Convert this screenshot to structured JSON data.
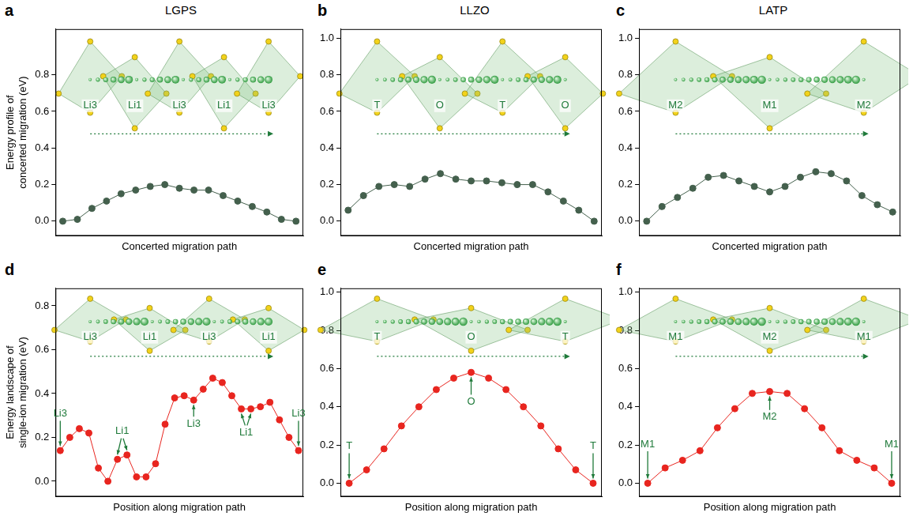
{
  "chart_data": [
    {
      "panel": "a",
      "type": "line",
      "title": "LGPS",
      "y_label": "Energy profile of concerted migration (eV)",
      "x_label": "Concerted migration path",
      "categories": [
        null,
        null,
        null,
        null,
        null,
        null,
        null,
        null,
        null,
        null,
        null,
        null,
        null,
        null,
        null,
        null,
        null
      ],
      "values": [
        0.0,
        0.01,
        0.07,
        0.11,
        0.15,
        0.17,
        0.19,
        0.2,
        0.18,
        0.17,
        0.17,
        0.14,
        0.11,
        0.08,
        0.05,
        0.01,
        0.0
      ],
      "color": "#44604d",
      "marker": "circle",
      "line_style": "solid",
      "ylim": [
        -0.08,
        1.05
      ],
      "yticks": [
        {
          "value": 0,
          "label": "0.0"
        },
        {
          "value": 0.2,
          "label": "0.2"
        },
        {
          "value": 0.4,
          "label": "0.4"
        },
        {
          "value": 0.6,
          "label": "0.6"
        },
        {
          "value": 0.8,
          "label": "0.8"
        }
      ],
      "grid": false,
      "tick_labels": "y",
      "inset_labels": [
        "Li3",
        "Li1",
        "Li3",
        "Li1",
        "Li3"
      ],
      "annotations": []
    },
    {
      "panel": "b",
      "type": "line",
      "title": "LLZO",
      "x_label": "Concerted migration path",
      "categories": [
        null,
        null,
        null,
        null,
        null,
        null,
        null,
        null,
        null,
        null,
        null,
        null,
        null,
        null,
        null,
        null,
        null
      ],
      "values": [
        0.06,
        0.14,
        0.19,
        0.2,
        0.19,
        0.23,
        0.26,
        0.23,
        0.22,
        0.22,
        0.21,
        0.2,
        0.2,
        0.16,
        0.11,
        0.06,
        0.0
      ],
      "color": "#44604d",
      "marker": "circle",
      "line_style": "solid",
      "ylim": [
        -0.08,
        1.05
      ],
      "yticks": [
        {
          "value": 0,
          "label": "0.0"
        },
        {
          "value": 0.2,
          "label": "0.2"
        },
        {
          "value": 0.4,
          "label": "0.4"
        },
        {
          "value": 0.6,
          "label": "0.6"
        },
        {
          "value": 0.8,
          "label": "0.8"
        },
        {
          "value": 1,
          "label": "1.0"
        }
      ],
      "grid": false,
      "tick_labels": "y",
      "inset_labels": [
        "T",
        "O",
        "T",
        "O"
      ],
      "annotations": []
    },
    {
      "panel": "c",
      "type": "line",
      "title": "LATP",
      "x_label": "Concerted migration path",
      "categories": [
        null,
        null,
        null,
        null,
        null,
        null,
        null,
        null,
        null,
        null,
        null,
        null,
        null,
        null,
        null,
        null,
        null
      ],
      "values": [
        0.0,
        0.08,
        0.13,
        0.18,
        0.24,
        0.25,
        0.22,
        0.19,
        0.16,
        0.19,
        0.24,
        0.27,
        0.26,
        0.22,
        0.14,
        0.09,
        0.05
      ],
      "color": "#44604d",
      "marker": "circle",
      "line_style": "solid",
      "ylim": [
        -0.08,
        1.05
      ],
      "yticks": [
        {
          "value": 0,
          "label": "0.0"
        },
        {
          "value": 0.2,
          "label": "0.2"
        },
        {
          "value": 0.4,
          "label": "0.4"
        },
        {
          "value": 0.6,
          "label": "0.6"
        },
        {
          "value": 0.8,
          "label": "0.8"
        },
        {
          "value": 1,
          "label": "1.0"
        }
      ],
      "grid": false,
      "tick_labels": "y",
      "inset_labels": [
        "M2",
        "M1",
        "M2"
      ],
      "annotations": []
    },
    {
      "panel": "d",
      "type": "line",
      "y_label": "Energy landscape of single-ion migration (eV)",
      "x_label": "Position along migration path",
      "categories": [
        null,
        null,
        null,
        null,
        null,
        null,
        null,
        null,
        null,
        null,
        null,
        null,
        null,
        null,
        null,
        null,
        null,
        null,
        null,
        null,
        null,
        null,
        null,
        null,
        null,
        null
      ],
      "values": [
        0.14,
        0.2,
        0.24,
        0.22,
        0.06,
        0.0,
        0.1,
        0.12,
        0.02,
        0.02,
        0.08,
        0.26,
        0.38,
        0.39,
        0.37,
        0.42,
        0.47,
        0.45,
        0.39,
        0.33,
        0.33,
        0.34,
        0.36,
        0.28,
        0.2,
        0.14
      ],
      "color": "#e8251f",
      "marker": "circle",
      "line_style": "solid",
      "ylim": [
        -0.07,
        0.88
      ],
      "yticks": [
        {
          "value": 0,
          "label": "0.0"
        },
        {
          "value": 0.2,
          "label": "0.2"
        },
        {
          "value": 0.4,
          "label": "0.4"
        },
        {
          "value": 0.6,
          "label": "0.6"
        },
        {
          "value": 0.8,
          "label": "0.8"
        }
      ],
      "grid": false,
      "tick_labels": "y",
      "inset_labels": [
        "Li3",
        "Li1",
        "Li3",
        "Li1"
      ],
      "annotations": [
        {
          "text": "Li3",
          "at": [
            0
          ]
        },
        {
          "text": "Li1",
          "at": [
            6,
            7
          ]
        },
        {
          "text": "Li3",
          "at": [
            14
          ]
        },
        {
          "text": "Li1",
          "at": [
            19,
            20
          ]
        },
        {
          "text": "Li3",
          "at": [
            25
          ]
        }
      ]
    },
    {
      "panel": "e",
      "type": "line",
      "x_label": "Position along migration path",
      "categories": [
        null,
        null,
        null,
        null,
        null,
        null,
        null,
        null,
        null,
        null,
        null,
        null,
        null,
        null,
        null
      ],
      "values": [
        0.0,
        0.07,
        0.18,
        0.3,
        0.4,
        0.49,
        0.55,
        0.58,
        0.55,
        0.49,
        0.4,
        0.3,
        0.18,
        0.07,
        0.0
      ],
      "color": "#e8251f",
      "marker": "circle",
      "line_style": "solid",
      "ylim": [
        -0.07,
        1.02
      ],
      "yticks": [
        {
          "value": 0,
          "label": "0.0"
        },
        {
          "value": 0.2,
          "label": "0.2"
        },
        {
          "value": 0.4,
          "label": "0.4"
        },
        {
          "value": 0.6,
          "label": "0.6"
        },
        {
          "value": 0.8,
          "label": "0.8"
        },
        {
          "value": 1,
          "label": "1.0"
        }
      ],
      "grid": false,
      "tick_labels": "y",
      "inset_labels": [
        "T",
        "O",
        "T"
      ],
      "annotations": [
        {
          "text": "T",
          "at": [
            0
          ]
        },
        {
          "text": "O",
          "at": [
            7
          ]
        },
        {
          "text": "T",
          "at": [
            14
          ]
        }
      ]
    },
    {
      "panel": "f",
      "type": "line",
      "x_label": "Position along migration path",
      "categories": [
        null,
        null,
        null,
        null,
        null,
        null,
        null,
        null,
        null,
        null,
        null,
        null,
        null,
        null,
        null
      ],
      "values": [
        0.0,
        0.08,
        0.12,
        0.17,
        0.29,
        0.39,
        0.47,
        0.48,
        0.47,
        0.39,
        0.29,
        0.17,
        0.12,
        0.08,
        0.0
      ],
      "color": "#e8251f",
      "marker": "circle",
      "line_style": "solid",
      "ylim": [
        -0.07,
        1.02
      ],
      "yticks": [
        {
          "value": 0,
          "label": "0.0"
        },
        {
          "value": 0.2,
          "label": "0.2"
        },
        {
          "value": 0.4,
          "label": "0.4"
        },
        {
          "value": 0.6,
          "label": "0.6"
        },
        {
          "value": 0.8,
          "label": "0.8"
        },
        {
          "value": 1,
          "label": "1.0"
        }
      ],
      "grid": false,
      "tick_labels": "y",
      "inset_labels": [
        "M1",
        "M2",
        "M1"
      ],
      "annotations": [
        {
          "text": "M1",
          "at": [
            0
          ]
        },
        {
          "text": "M2",
          "at": [
            7
          ]
        },
        {
          "text": "M1",
          "at": [
            14
          ]
        }
      ]
    }
  ]
}
